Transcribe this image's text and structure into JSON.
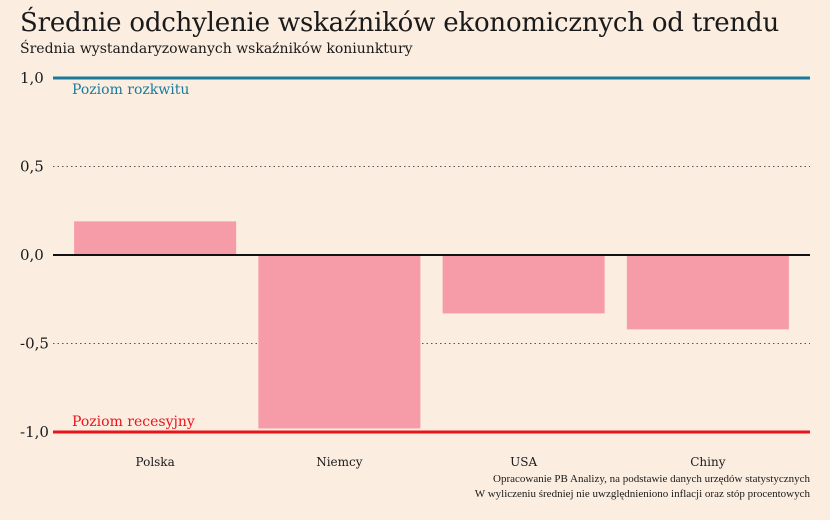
{
  "title": "Średnie odchylenie wskaźników ekonomicznych od trendu",
  "subtitle": "Średnia wystandaryzowanych wskaźników koniunktury",
  "source": {
    "line1": "Opracowanie PB Analizy, na podstawie danych urzędów statystycznych",
    "line2": "W wyliczeniu średniej nie uwzględnieniono inflacji oraz stóp procentowych"
  },
  "colors": {
    "bar": "#f59ca8",
    "boom": "#1a7a9c",
    "recession": "#e8141c",
    "zero": "#111111",
    "background": "#fbede0"
  },
  "chart_data": {
    "type": "bar",
    "categories": [
      "Polska",
      "Niemcy",
      "USA",
      "Chiny"
    ],
    "values": [
      0.19,
      -0.98,
      -0.33,
      -0.42
    ],
    "ylim": [
      -1.0,
      1.0
    ],
    "yticks": [
      1.0,
      0.5,
      0.0,
      -0.5,
      -1.0
    ],
    "ytick_labels": [
      "1,0",
      "0,5",
      "0,0",
      "-0,5",
      "-1,0"
    ],
    "grid": "dotted horizontal",
    "reference_lines": [
      {
        "value": 1.0,
        "label": "Poziom rozkwitu"
      },
      {
        "value": -1.0,
        "label": "Poziom recesyjny"
      }
    ]
  }
}
